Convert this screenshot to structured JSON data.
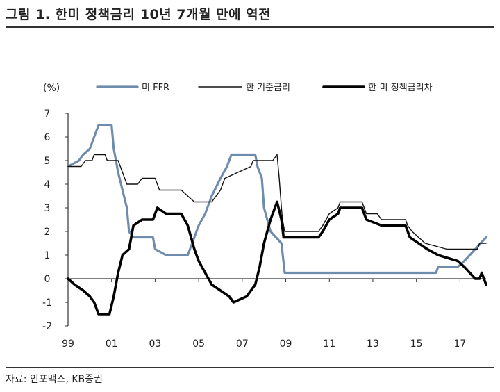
{
  "title": "그림 1. 한미 정책금리 10년 7개월 만에 역전",
  "source": "자료: 인포맥스, KB증권",
  "chart_data": {
    "type": "line",
    "unit_label": "(%)",
    "ylim": [
      -2,
      7
    ],
    "yticks": [
      "7",
      "6",
      "5",
      "4",
      "3",
      "2",
      "1",
      "0",
      "-1",
      "-2"
    ],
    "xlim": [
      1999,
      2018.2
    ],
    "xticks": [
      {
        "label": "99",
        "value": 1999
      },
      {
        "label": "01",
        "value": 2001
      },
      {
        "label": "03",
        "value": 2003
      },
      {
        "label": "05",
        "value": 2005
      },
      {
        "label": "07",
        "value": 2007
      },
      {
        "label": "09",
        "value": 2009
      },
      {
        "label": "11",
        "value": 2011
      },
      {
        "label": "13",
        "value": 2013
      },
      {
        "label": "15",
        "value": 2015
      },
      {
        "label": "17",
        "value": 2017
      }
    ],
    "series": [
      {
        "name": "미 FFR",
        "color": "#6f8cad",
        "width": 3.2,
        "points": [
          [
            1999.0,
            4.75
          ],
          [
            1999.5,
            5.0
          ],
          [
            1999.7,
            5.25
          ],
          [
            2000.0,
            5.5
          ],
          [
            2000.2,
            6.0
          ],
          [
            2000.4,
            6.5
          ],
          [
            2001.0,
            6.5
          ],
          [
            2001.1,
            5.5
          ],
          [
            2001.3,
            4.5
          ],
          [
            2001.5,
            3.75
          ],
          [
            2001.7,
            3.0
          ],
          [
            2001.8,
            2.0
          ],
          [
            2002.0,
            1.75
          ],
          [
            2002.9,
            1.75
          ],
          [
            2003.0,
            1.25
          ],
          [
            2003.5,
            1.0
          ],
          [
            2004.5,
            1.0
          ],
          [
            2004.7,
            1.5
          ],
          [
            2005.0,
            2.25
          ],
          [
            2005.3,
            2.75
          ],
          [
            2005.6,
            3.5
          ],
          [
            2006.0,
            4.25
          ],
          [
            2006.3,
            4.75
          ],
          [
            2006.5,
            5.25
          ],
          [
            2007.6,
            5.25
          ],
          [
            2007.7,
            4.75
          ],
          [
            2007.9,
            4.25
          ],
          [
            2008.0,
            3.0
          ],
          [
            2008.3,
            2.0
          ],
          [
            2008.8,
            1.5
          ],
          [
            2008.95,
            0.25
          ],
          [
            2015.9,
            0.25
          ],
          [
            2016.0,
            0.5
          ],
          [
            2016.9,
            0.5
          ],
          [
            2017.2,
            0.75
          ],
          [
            2017.45,
            1.0
          ],
          [
            2017.7,
            1.25
          ],
          [
            2017.95,
            1.5
          ],
          [
            2018.2,
            1.75
          ]
        ]
      },
      {
        "name": "한 기준금리",
        "color": "#111111",
        "width": 1.4,
        "points": [
          [
            1999.0,
            4.75
          ],
          [
            1999.6,
            4.75
          ],
          [
            1999.8,
            5.0
          ],
          [
            2000.1,
            5.0
          ],
          [
            2000.2,
            5.25
          ],
          [
            2000.7,
            5.25
          ],
          [
            2000.8,
            5.0
          ],
          [
            2001.3,
            5.0
          ],
          [
            2001.5,
            4.5
          ],
          [
            2001.7,
            4.0
          ],
          [
            2002.2,
            4.0
          ],
          [
            2002.4,
            4.25
          ],
          [
            2003.0,
            4.25
          ],
          [
            2003.2,
            3.75
          ],
          [
            2004.2,
            3.75
          ],
          [
            2004.5,
            3.5
          ],
          [
            2004.8,
            3.25
          ],
          [
            2005.6,
            3.25
          ],
          [
            2005.8,
            3.5
          ],
          [
            2006.0,
            3.75
          ],
          [
            2006.2,
            4.25
          ],
          [
            2006.8,
            4.5
          ],
          [
            2007.4,
            4.75
          ],
          [
            2007.5,
            5.0
          ],
          [
            2008.4,
            5.0
          ],
          [
            2008.6,
            5.25
          ],
          [
            2008.7,
            4.25
          ],
          [
            2008.8,
            3.0
          ],
          [
            2008.85,
            2.5
          ],
          [
            2008.95,
            2.0
          ],
          [
            2010.5,
            2.0
          ],
          [
            2010.7,
            2.25
          ],
          [
            2011.0,
            2.75
          ],
          [
            2011.4,
            3.0
          ],
          [
            2011.5,
            3.25
          ],
          [
            2012.5,
            3.25
          ],
          [
            2012.7,
            2.75
          ],
          [
            2013.2,
            2.75
          ],
          [
            2013.4,
            2.5
          ],
          [
            2014.5,
            2.5
          ],
          [
            2014.6,
            2.25
          ],
          [
            2014.8,
            2.0
          ],
          [
            2015.1,
            1.75
          ],
          [
            2015.4,
            1.5
          ],
          [
            2016.4,
            1.25
          ],
          [
            2017.8,
            1.25
          ],
          [
            2017.9,
            1.5
          ],
          [
            2018.2,
            1.5
          ]
        ]
      },
      {
        "name": "한-미 정책금리차",
        "color": "#000000",
        "width": 3.6,
        "points": [
          [
            1999.0,
            0.0
          ],
          [
            1999.3,
            -0.25
          ],
          [
            1999.7,
            -0.5
          ],
          [
            2000.0,
            -0.75
          ],
          [
            2000.2,
            -1.0
          ],
          [
            2000.4,
            -1.5
          ],
          [
            2000.9,
            -1.5
          ],
          [
            2001.1,
            -0.75
          ],
          [
            2001.3,
            0.25
          ],
          [
            2001.5,
            1.0
          ],
          [
            2001.8,
            1.25
          ],
          [
            2002.0,
            2.25
          ],
          [
            2002.4,
            2.5
          ],
          [
            2002.9,
            2.5
          ],
          [
            2003.1,
            3.0
          ],
          [
            2003.5,
            2.75
          ],
          [
            2004.2,
            2.75
          ],
          [
            2004.5,
            2.25
          ],
          [
            2004.8,
            1.25
          ],
          [
            2005.0,
            0.75
          ],
          [
            2005.3,
            0.25
          ],
          [
            2005.6,
            -0.25
          ],
          [
            2006.0,
            -0.5
          ],
          [
            2006.4,
            -0.75
          ],
          [
            2006.6,
            -1.0
          ],
          [
            2007.2,
            -0.75
          ],
          [
            2007.6,
            -0.25
          ],
          [
            2007.8,
            0.5
          ],
          [
            2008.0,
            1.5
          ],
          [
            2008.3,
            2.5
          ],
          [
            2008.6,
            3.25
          ],
          [
            2008.8,
            2.5
          ],
          [
            2008.9,
            1.75
          ],
          [
            2010.5,
            1.75
          ],
          [
            2010.7,
            2.0
          ],
          [
            2011.0,
            2.5
          ],
          [
            2011.4,
            2.75
          ],
          [
            2011.5,
            3.0
          ],
          [
            2012.5,
            3.0
          ],
          [
            2012.7,
            2.5
          ],
          [
            2013.4,
            2.25
          ],
          [
            2014.5,
            2.25
          ],
          [
            2014.7,
            1.75
          ],
          [
            2015.1,
            1.5
          ],
          [
            2015.5,
            1.25
          ],
          [
            2016.0,
            1.0
          ],
          [
            2016.9,
            0.75
          ],
          [
            2017.2,
            0.5
          ],
          [
            2017.45,
            0.25
          ],
          [
            2017.7,
            0.0
          ],
          [
            2017.9,
            0.0
          ],
          [
            2018.0,
            0.25
          ],
          [
            2018.1,
            0.0
          ],
          [
            2018.2,
            -0.25
          ]
        ]
      }
    ]
  }
}
